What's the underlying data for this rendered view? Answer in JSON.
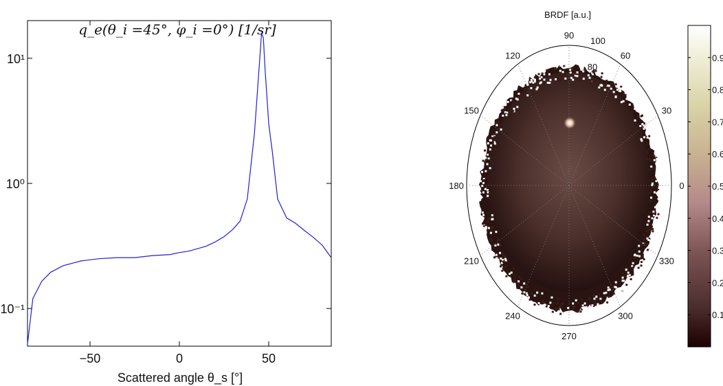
{
  "chart_data": [
    {
      "type": "line",
      "title": "q_e(θ_i =45°, φ_i =0°) [1/sr]",
      "xlabel": "Scattered angle θ_s [°]",
      "ylabel": "",
      "xlim": [
        -85,
        85
      ],
      "ylim": [
        0.05,
        20
      ],
      "yscale": "log",
      "xticks": [
        -50,
        0,
        50
      ],
      "xtick_labels": [
        "−50",
        "0",
        "50"
      ],
      "yticks": [
        0.1,
        1,
        10
      ],
      "ytick_labels": [
        "10⁻¹",
        "10⁰",
        "10¹"
      ],
      "grid": false,
      "series": [
        {
          "color": "#1f1fd6",
          "x": [
            -85,
            -82,
            -77,
            -72,
            -65,
            -55,
            -45,
            -35,
            -25,
            -15,
            -5,
            0,
            5,
            10,
            15,
            20,
            25,
            30,
            34,
            38,
            42,
            45,
            46,
            47,
            48,
            50,
            52,
            55,
            60,
            65,
            70,
            75,
            80,
            85
          ],
          "y": [
            0.052,
            0.12,
            0.165,
            0.195,
            0.22,
            0.24,
            0.25,
            0.255,
            0.255,
            0.265,
            0.27,
            0.28,
            0.287,
            0.3,
            0.315,
            0.34,
            0.375,
            0.43,
            0.5,
            0.75,
            2.5,
            10,
            16,
            14.5,
            8,
            3,
            1.8,
            0.75,
            0.53,
            0.48,
            0.42,
            0.37,
            0.32,
            0.255
          ]
        }
      ]
    },
    {
      "type": "heatmap",
      "projection": "polar",
      "title": "BRDF [a.u.]",
      "angle_labels": [
        "90",
        "60",
        "30",
        "0",
        "330",
        "300",
        "270",
        "240",
        "210",
        "180",
        "150",
        "120"
      ],
      "radial_labels": [
        "100",
        "80"
      ],
      "colormap": "pink",
      "colorbar": {
        "ticks": [
          0.1,
          0.2,
          0.3,
          0.4,
          0.5,
          0.6,
          0.7,
          0.8,
          0.9
        ],
        "labels": [
          "0.1",
          "0.2",
          "0.3",
          "0.4",
          "0.5",
          "0.6",
          "0.7",
          "0.8",
          "0.9"
        ],
        "range": [
          0,
          1
        ]
      },
      "hotspot": {
        "theta_deg": 45,
        "phi_deg": 90,
        "value": 1.0
      }
    }
  ]
}
